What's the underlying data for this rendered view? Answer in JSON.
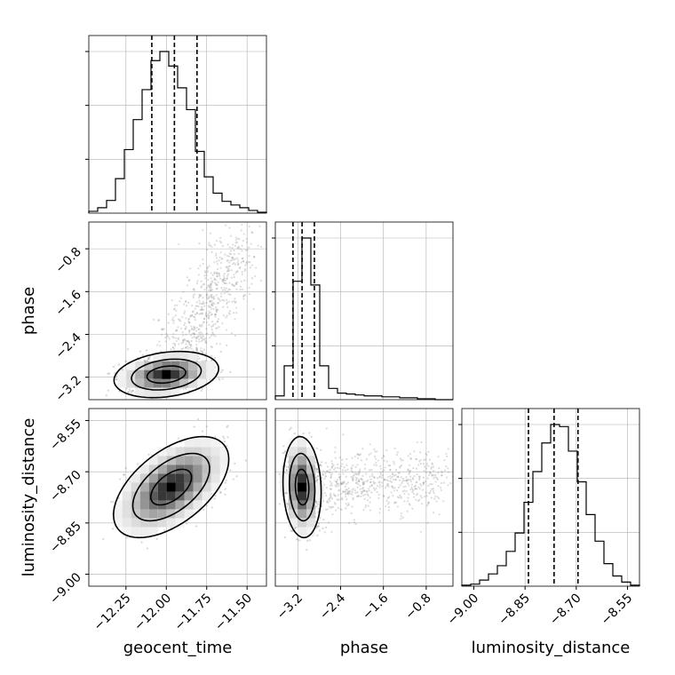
{
  "chart_data": {
    "type": "corner",
    "parameters": [
      "geocent_time",
      "phase",
      "luminosity_distance"
    ],
    "ranges": {
      "geocent_time": [
        -12.48,
        -11.38
      ],
      "phase": [
        -3.62,
        -0.3
      ],
      "luminosity_distance": [
        -9.035,
        -8.515
      ]
    },
    "ticks": {
      "geocent_time": [
        -12.25,
        -12.0,
        -11.75,
        -11.5
      ],
      "phase": [
        -3.2,
        -2.4,
        -1.6,
        -0.8
      ],
      "luminosity_distance": [
        -9.0,
        -8.85,
        -8.7,
        -8.55
      ]
    },
    "tick_labels": {
      "geocent_time": [
        "−12.25",
        "−12.00",
        "−11.75",
        "−11.50"
      ],
      "phase": [
        "−3.2",
        "−2.4",
        "−1.6",
        "−0.8"
      ],
      "luminosity_distance": [
        "−9.00",
        "−8.85",
        "−8.70",
        "−8.55"
      ]
    },
    "quantiles": {
      "geocent_time": [
        -12.09,
        -11.95,
        -11.81
      ],
      "phase": [
        -3.29,
        -3.12,
        -2.89
      ],
      "luminosity_distance": [
        -8.84,
        -8.765,
        -8.695
      ]
    },
    "histograms": {
      "geocent_time": {
        "edges": [
          -12.48,
          -12.425,
          -12.37,
          -12.315,
          -12.26,
          -12.205,
          -12.15,
          -12.095,
          -12.04,
          -11.985,
          -11.93,
          -11.875,
          -11.82,
          -11.765,
          -11.71,
          -11.655,
          -11.6,
          -11.545,
          -11.49,
          -11.435,
          -11.38
        ],
        "counts": [
          2,
          6,
          14,
          38,
          70,
          103,
          136,
          168,
          178,
          162,
          138,
          114,
          68,
          40,
          22,
          13,
          9,
          6,
          3,
          1
        ]
      },
      "phase": {
        "edges": [
          -3.62,
          -3.454,
          -3.288,
          -3.122,
          -2.956,
          -2.79,
          -2.624,
          -2.458,
          -2.292,
          -2.126,
          -1.96,
          -1.794,
          -1.628,
          -1.462,
          -1.296,
          -1.13,
          -0.964,
          -0.798,
          -0.632,
          -0.466,
          -0.3
        ],
        "counts": [
          4,
          36,
          126,
          172,
          122,
          36,
          12,
          7,
          6,
          5,
          4,
          4,
          3,
          3,
          2,
          2,
          1,
          1,
          0,
          0
        ]
      },
      "luminosity_distance": {
        "edges": [
          -9.035,
          -9.009,
          -8.983,
          -8.957,
          -8.931,
          -8.905,
          -8.879,
          -8.853,
          -8.827,
          -8.801,
          -8.775,
          -8.749,
          -8.723,
          -8.697,
          -8.671,
          -8.645,
          -8.619,
          -8.593,
          -8.567,
          -8.541,
          -8.515
        ],
        "counts": [
          1,
          2,
          6,
          12,
          20,
          34,
          52,
          82,
          112,
          140,
          158,
          156,
          132,
          102,
          70,
          44,
          22,
          10,
          4,
          1
        ]
      }
    },
    "pairs": [
      {
        "x": "geocent_time",
        "y": "phase",
        "center": [
          -12.0,
          -3.15
        ],
        "sd": [
          0.12,
          0.16
        ],
        "correlation": 0.25,
        "contour_radii": [
          1,
          1.8,
          2.7
        ],
        "tail": {
          "from": [
            -11.9,
            -2.7
          ],
          "to": [
            -11.52,
            -0.7
          ],
          "spread": [
            0.08,
            0.35
          ]
        }
      },
      {
        "x": "geocent_time",
        "y": "luminosity_distance",
        "center": [
          -11.97,
          -8.745
        ],
        "sd": [
          0.14,
          0.058
        ],
        "correlation": 0.55,
        "contour_radii": [
          0.9,
          1.7,
          2.55
        ]
      },
      {
        "x": "phase",
        "y": "luminosity_distance",
        "center": [
          -3.12,
          -8.745
        ],
        "sd": [
          0.14,
          0.058
        ],
        "correlation": -0.1,
        "contour_radii": [
          0.9,
          1.7,
          2.55
        ],
        "tail": {
          "from": [
            -2.8,
            -8.74
          ],
          "to": [
            -0.5,
            -8.72
          ],
          "spread": [
            0.3,
            0.045
          ]
        }
      }
    ],
    "grid": true
  }
}
